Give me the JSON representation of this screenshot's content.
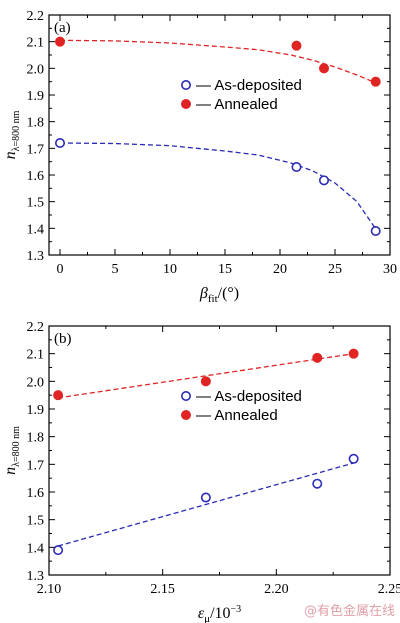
{
  "colors": {
    "as_deposited": "#2a2ab8",
    "annealed": "#e02424",
    "watermark": "#e0a0a8"
  },
  "watermark": "@有色金属在线",
  "chart_data": [
    {
      "type": "scatter",
      "panel_label": "(a)",
      "xlabel": {
        "symbol": "β",
        "sub": "fit",
        "rest": "/(°)"
      },
      "ylabel": {
        "symbol": "n",
        "sub": "λ=800 nm"
      },
      "xlim": [
        -1,
        30
      ],
      "ylim": [
        1.3,
        2.2
      ],
      "xticks": [
        0,
        5,
        10,
        15,
        20,
        25,
        30
      ],
      "yticks": [
        1.3,
        1.4,
        1.5,
        1.6,
        1.7,
        1.8,
        1.9,
        2.0,
        2.1,
        2.2
      ],
      "legend_position": "center-right",
      "series": [
        {
          "name": "As-deposited",
          "legend_label": "— As-deposited",
          "marker": "open-circle",
          "color_key": "as_deposited",
          "x": [
            0,
            21.5,
            24,
            28.7
          ],
          "y": [
            1.72,
            1.63,
            1.58,
            1.39
          ],
          "fit_x": [
            0,
            5,
            10,
            15,
            18,
            21,
            23,
            25,
            27,
            29
          ],
          "fit_y": [
            1.72,
            1.718,
            1.71,
            1.69,
            1.675,
            1.645,
            1.615,
            1.57,
            1.5,
            1.38
          ]
        },
        {
          "name": "Annealed",
          "legend_label": "— Annealed",
          "marker": "filled-circle",
          "color_key": "annealed",
          "x": [
            0,
            21.5,
            24,
            28.7
          ],
          "y": [
            2.1,
            2.085,
            2.0,
            1.95
          ],
          "fit_x": [
            0,
            5,
            10,
            15,
            18,
            21,
            23,
            25,
            27,
            29
          ],
          "fit_y": [
            2.105,
            2.103,
            2.095,
            2.08,
            2.07,
            2.05,
            2.03,
            2.005,
            1.975,
            1.94
          ]
        }
      ]
    },
    {
      "type": "scatter",
      "panel_label": "(b)",
      "xlabel": {
        "symbol": "ε",
        "sub": "μ",
        "rest": "/10",
        "sup": "−3"
      },
      "ylabel": {
        "symbol": "n",
        "sub": "λ=800 nm"
      },
      "xlim": [
        2.1,
        2.25
      ],
      "ylim": [
        1.3,
        2.2
      ],
      "xticks": [
        2.1,
        2.15,
        2.2,
        2.25
      ],
      "xtick_labels": [
        "2.10",
        "2.15",
        "2.20",
        "2.25"
      ],
      "yticks": [
        1.3,
        1.4,
        1.5,
        1.6,
        1.7,
        1.8,
        1.9,
        2.0,
        2.1,
        2.2
      ],
      "legend_position": "center-right",
      "series": [
        {
          "name": "As-deposited",
          "legend_label": "— As-deposited",
          "marker": "open-circle",
          "color_key": "as_deposited",
          "x": [
            2.104,
            2.169,
            2.218,
            2.234
          ],
          "y": [
            1.39,
            1.58,
            1.63,
            1.72
          ],
          "fit_x": [
            2.104,
            2.234
          ],
          "fit_y": [
            1.405,
            1.705
          ]
        },
        {
          "name": "Annealed",
          "legend_label": "— Annealed",
          "marker": "filled-circle",
          "color_key": "annealed",
          "x": [
            2.104,
            2.169,
            2.218,
            2.234
          ],
          "y": [
            1.95,
            2.0,
            2.085,
            2.1
          ],
          "fit_x": [
            2.104,
            2.234
          ],
          "fit_y": [
            1.94,
            2.1
          ]
        }
      ]
    }
  ]
}
